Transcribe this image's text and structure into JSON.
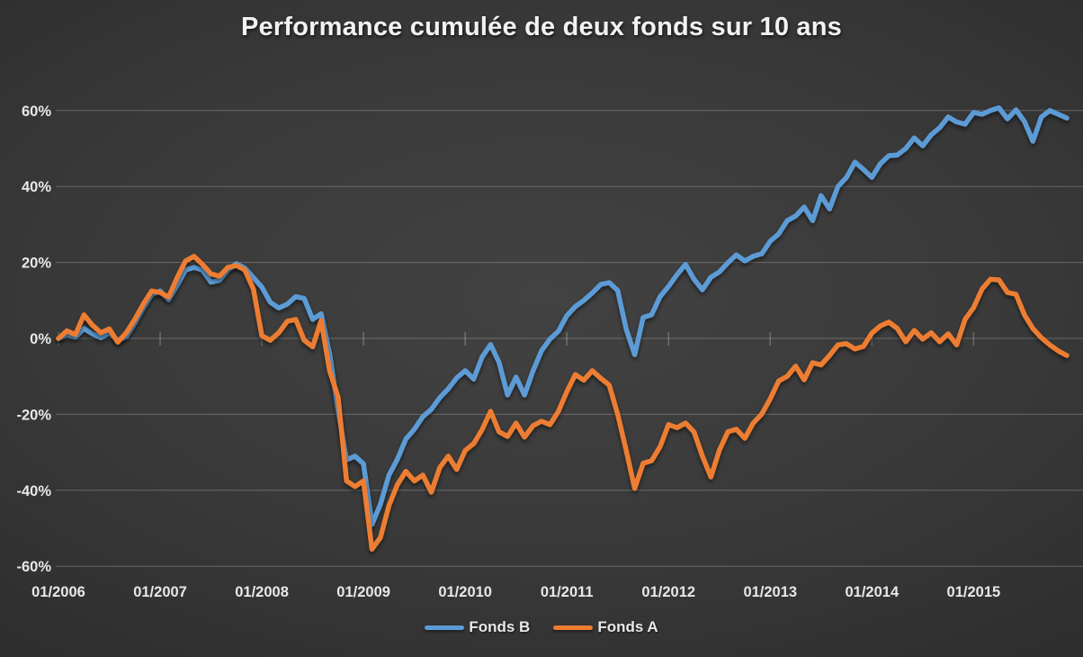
{
  "chart_data": {
    "type": "line",
    "title": "Performance cumulée de deux fonds sur 10 ans",
    "xlabel": "",
    "ylabel": "",
    "x_unit": "month",
    "x_range": [
      "01/2006",
      "12/2015"
    ],
    "n_points": 120,
    "ylim": [
      -65,
      65
    ],
    "grid": "horizontal",
    "legend_position": "bottom-center",
    "y_ticks": [
      {
        "value": 60,
        "label": "60%"
      },
      {
        "value": 40,
        "label": "40%"
      },
      {
        "value": 20,
        "label": "20%"
      },
      {
        "value": 0,
        "label": "0%"
      },
      {
        "value": -20,
        "label": "-20%"
      },
      {
        "value": -40,
        "label": "-40%"
      },
      {
        "value": -60,
        "label": "-60%"
      }
    ],
    "x_ticks": [
      {
        "month": 0,
        "label": "01/2006"
      },
      {
        "month": 12,
        "label": "01/2007"
      },
      {
        "month": 24,
        "label": "01/2008"
      },
      {
        "month": 36,
        "label": "01/2009"
      },
      {
        "month": 48,
        "label": "01/2010"
      },
      {
        "month": 60,
        "label": "01/2011"
      },
      {
        "month": 72,
        "label": "01/2012"
      },
      {
        "month": 84,
        "label": "01/2013"
      },
      {
        "month": 96,
        "label": "01/2014"
      },
      {
        "month": 108,
        "label": "01/2015"
      }
    ],
    "series": [
      {
        "name": "Fonds B",
        "color": "#5B9BD5",
        "values": [
          0,
          1,
          0.3,
          2.6,
          1.2,
          0.2,
          1.5,
          -0.5,
          0.5,
          4,
          8,
          11.5,
          12.5,
          10.2,
          14,
          18,
          18.7,
          18,
          14.8,
          15.3,
          18,
          19.7,
          18.5,
          16,
          13.5,
          9.5,
          8,
          9,
          11,
          10.5,
          5,
          6.5,
          -4,
          -19,
          -32,
          -31,
          -33,
          -49,
          -43.6,
          -36,
          -31.8,
          -26.5,
          -23.9,
          -20.6,
          -18.7,
          -15.6,
          -13.3,
          -10.4,
          -8.5,
          -10.7,
          -4.9,
          -1.6,
          -6.3,
          -14.9,
          -10.2,
          -14.9,
          -8.6,
          -3.3,
          -0.2,
          1.9,
          6,
          8.4,
          10,
          12,
          14.2,
          14.7,
          12.6,
          2.5,
          -4.3,
          5.5,
          6.2,
          11,
          13.7,
          16.8,
          19.5,
          15.6,
          12.8,
          16.1,
          17.5,
          19.9,
          22,
          20.4,
          21.6,
          22.3,
          25.6,
          27.5,
          31,
          32.2,
          34.6,
          31,
          37.6,
          34.1,
          40,
          42.4,
          46.4,
          44.5,
          42.4,
          46,
          48.1,
          48.3,
          50,
          52.8,
          50.7,
          53.6,
          55.5,
          58.3,
          57,
          56.4,
          59.5,
          59,
          60,
          60.7,
          57.8,
          60.2,
          57.1,
          51.9,
          58.3,
          60,
          59,
          58
        ]
      },
      {
        "name": "Fonds A",
        "color": "#ED7D31",
        "values": [
          0,
          2,
          1,
          6.2,
          3.5,
          1.5,
          2.5,
          -1,
          1.5,
          5,
          9,
          12.5,
          12.1,
          10.9,
          16,
          20.4,
          21.6,
          19.5,
          17,
          16.4,
          18.7,
          19.2,
          18,
          13,
          0.7,
          -0.5,
          1.5,
          4.5,
          5,
          -0.5,
          -2.2,
          4.7,
          -8.5,
          -15.5,
          -37.5,
          -39,
          -37.5,
          -55.5,
          -52.4,
          -44,
          -38.5,
          -35,
          -37.5,
          -36,
          -40.5,
          -34,
          -31,
          -34.5,
          -29.5,
          -27.7,
          -24,
          -19.2,
          -24.6,
          -25.8,
          -22.3,
          -26,
          -23,
          -21.8,
          -22.7,
          -19.2,
          -14,
          -9.5,
          -11,
          -8.5,
          -10.5,
          -12.3,
          -20,
          -29.4,
          -39.5,
          -32.9,
          -32.2,
          -28.5,
          -22.7,
          -23.5,
          -22.3,
          -24.6,
          -31,
          -36.5,
          -29.4,
          -24.6,
          -23.9,
          -26.3,
          -22.3,
          -19.9,
          -15.9,
          -11.2,
          -10,
          -7.3,
          -10.9,
          -6.4,
          -7,
          -4.5,
          -1.7,
          -1.4,
          -2.8,
          -2.1,
          1.4,
          3.3,
          4.3,
          2.6,
          -0.9,
          2.1,
          -0.2,
          1.5,
          -0.9,
          1.2,
          -1.7,
          5,
          8.1,
          13,
          15.6,
          15.4,
          12.1,
          11.6,
          6.2,
          2.6,
          0.2,
          -1.7,
          -3.3,
          -4.5
        ]
      }
    ]
  },
  "legend": {
    "items": [
      {
        "label": "Fonds B",
        "color": "#5B9BD5"
      },
      {
        "label": "Fonds A",
        "color": "#ED7D31"
      }
    ]
  },
  "colors": {
    "background_center": "#424242",
    "background_edge": "#2a2a2a",
    "gridline": "rgba(230,230,230,0.28)",
    "tick_text": "#e8e8e8",
    "title_text": "#f2f2f2",
    "fonds_b": "#5B9BD5",
    "fonds_a": "#ED7D31"
  }
}
